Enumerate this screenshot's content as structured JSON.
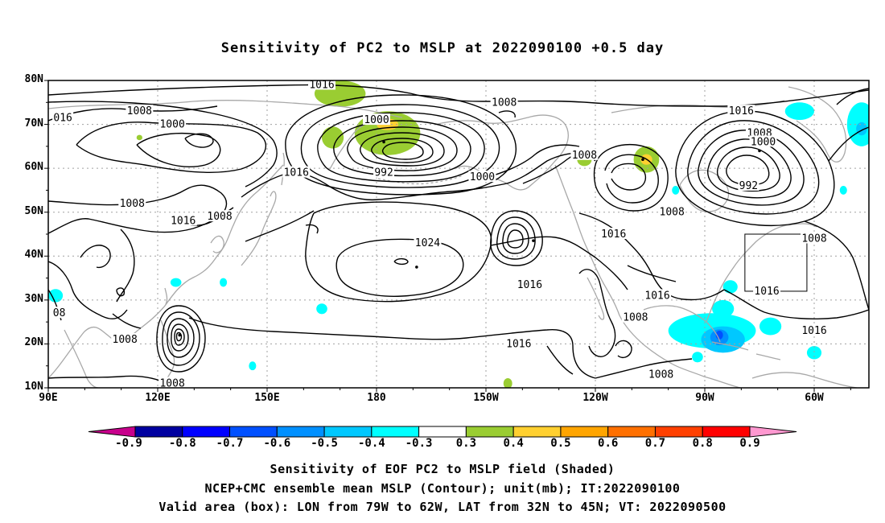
{
  "title": "Sensitivity of PC2 to MSLP at 2022090100 +0.5 day",
  "map": {
    "lat_labels": [
      "80N",
      "70N",
      "60N",
      "50N",
      "40N",
      "30N",
      "20N",
      "10N"
    ],
    "lon_labels": [
      "90E",
      "120E",
      "150E",
      "180",
      "150W",
      "120W",
      "90W",
      "60W"
    ],
    "lon_range_deg_east": [
      90,
      315
    ],
    "lat_range": [
      10,
      80
    ],
    "grid_style": "dotted",
    "valid_box": {
      "lon": [
        -79,
        -62
      ],
      "lat": [
        32,
        45
      ]
    },
    "contour_unit": "mb",
    "contour_labels": [
      {
        "text": "1016",
        "lon": 165,
        "lat": 79
      },
      {
        "text": "016",
        "lon": 94,
        "lat": 71.5
      },
      {
        "text": "1008",
        "lon": 115,
        "lat": 73
      },
      {
        "text": "1000",
        "lon": 124,
        "lat": 70
      },
      {
        "text": "1000",
        "lon": 180,
        "lat": 71
      },
      {
        "text": "1008",
        "lon": 215,
        "lat": 75
      },
      {
        "text": "1016",
        "lon": 280,
        "lat": 73
      },
      {
        "text": "1008",
        "lon": 285,
        "lat": 68
      },
      {
        "text": "1000",
        "lon": 286,
        "lat": 66
      },
      {
        "text": "992",
        "lon": 182,
        "lat": 59
      },
      {
        "text": "1000",
        "lon": 209,
        "lat": 58
      },
      {
        "text": "1016",
        "lon": 158,
        "lat": 59
      },
      {
        "text": "1008",
        "lon": 237,
        "lat": 63
      },
      {
        "text": "992",
        "lon": 282,
        "lat": 56
      },
      {
        "text": "1008",
        "lon": 261,
        "lat": 50
      },
      {
        "text": "1008",
        "lon": 113,
        "lat": 52
      },
      {
        "text": "1016",
        "lon": 127,
        "lat": 48
      },
      {
        "text": "1008",
        "lon": 137,
        "lat": 49
      },
      {
        "text": "1024",
        "lon": 194,
        "lat": 43
      },
      {
        "text": "1016",
        "lon": 222,
        "lat": 33.5
      },
      {
        "text": "1016",
        "lon": 245,
        "lat": 45
      },
      {
        "text": "1008",
        "lon": 300,
        "lat": 44
      },
      {
        "text": "1016",
        "lon": 257,
        "lat": 31
      },
      {
        "text": "1016",
        "lon": 287,
        "lat": 32
      },
      {
        "text": "08",
        "lon": 93,
        "lat": 27
      },
      {
        "text": "1008",
        "lon": 111,
        "lat": 21
      },
      {
        "text": "1008",
        "lon": 251,
        "lat": 26
      },
      {
        "text": "1016",
        "lon": 300,
        "lat": 23
      },
      {
        "text": "1016",
        "lon": 219,
        "lat": 20
      },
      {
        "text": "1008",
        "lon": 258,
        "lat": 13
      },
      {
        "text": "1008",
        "lon": 124,
        "lat": 11
      }
    ],
    "lows": [
      {
        "lon": 126,
        "lat": 22
      },
      {
        "lon": 223,
        "lat": 43.5
      },
      {
        "lon": 191,
        "lat": 37.5
      },
      {
        "lon": 253,
        "lat": 62
      },
      {
        "lon": 285,
        "lat": 64
      },
      {
        "lon": 182,
        "lat": 66
      }
    ],
    "positive_regions": [
      {
        "lon": 170,
        "lat": 77,
        "rlon": 7,
        "rlat": 3,
        "level": 0.3
      },
      {
        "lon": 183,
        "lat": 68,
        "rlon": 9,
        "rlat": 5,
        "level": 0.3
      },
      {
        "lon": 168,
        "lat": 67,
        "rlon": 3,
        "rlat": 2.5,
        "level": 0.3
      },
      {
        "lon": 183,
        "lat": 70,
        "rlon": 3,
        "rlat": 1.3,
        "level": 0.4
      },
      {
        "lon": 254,
        "lat": 62,
        "rlon": 3.5,
        "rlat": 3,
        "level": 0.3
      },
      {
        "lon": 254,
        "lat": 62,
        "rlon": 1.6,
        "rlat": 1.2,
        "level": 0.4
      },
      {
        "lon": 237,
        "lat": 62,
        "rlon": 2,
        "rlat": 1.5,
        "level": 0.3
      },
      {
        "lon": 216,
        "lat": 11,
        "rlon": 1.2,
        "rlat": 1.2,
        "level": 0.3
      },
      {
        "lon": 115,
        "lat": 67,
        "rlon": 0.8,
        "rlat": 0.6,
        "level": 0.3
      }
    ],
    "negative_regions": [
      {
        "lon": 296,
        "lat": 73,
        "rlon": 4,
        "rlat": 2,
        "level": -0.3
      },
      {
        "lon": 313,
        "lat": 70,
        "rlon": 4,
        "rlat": 5,
        "level": -0.3
      },
      {
        "lon": 313,
        "lat": 69,
        "rlon": 1.5,
        "rlat": 1.5,
        "level": -0.4
      },
      {
        "lon": 272,
        "lat": 23,
        "rlon": 12,
        "rlat": 4,
        "level": -0.3
      },
      {
        "lon": 275,
        "lat": 21,
        "rlon": 6,
        "rlat": 3,
        "level": -0.4
      },
      {
        "lon": 274,
        "lat": 21.5,
        "rlon": 2.5,
        "rlat": 1.8,
        "level": -0.5
      },
      {
        "lon": 274,
        "lat": 22,
        "rlon": 1,
        "rlat": 1,
        "level": -0.6
      },
      {
        "lon": 275,
        "lat": 28,
        "rlon": 3,
        "rlat": 2,
        "level": -0.3
      },
      {
        "lon": 288,
        "lat": 24,
        "rlon": 3,
        "rlat": 2,
        "level": -0.3
      },
      {
        "lon": 300,
        "lat": 18,
        "rlon": 2,
        "rlat": 1.5,
        "level": -0.3
      },
      {
        "lon": 268,
        "lat": 17,
        "rlon": 1.5,
        "rlat": 1.2,
        "level": -0.3
      },
      {
        "lon": 277,
        "lat": 33,
        "rlon": 2,
        "rlat": 1.5,
        "level": -0.3
      },
      {
        "lon": 165,
        "lat": 28,
        "rlon": 1.5,
        "rlat": 1.2,
        "level": -0.3
      },
      {
        "lon": 125,
        "lat": 34,
        "rlon": 1.5,
        "rlat": 1,
        "level": -0.3
      },
      {
        "lon": 92,
        "lat": 31,
        "rlon": 2,
        "rlat": 1.5,
        "level": -0.3
      },
      {
        "lon": 262,
        "lat": 55,
        "rlon": 1,
        "rlat": 1,
        "level": -0.3
      },
      {
        "lon": 308,
        "lat": 55,
        "rlon": 1,
        "rlat": 1,
        "level": -0.3
      },
      {
        "lon": 146,
        "lat": 15,
        "rlon": 1,
        "rlat": 1,
        "level": -0.3
      },
      {
        "lon": 138,
        "lat": 34,
        "rlon": 1,
        "rlat": 1,
        "level": -0.3
      }
    ]
  },
  "colorbar": {
    "labels": [
      "-0.9",
      "-0.8",
      "-0.7",
      "-0.6",
      "-0.5",
      "-0.4",
      "-0.3",
      "0.3",
      "0.4",
      "0.5",
      "0.6",
      "0.7",
      "0.8",
      "0.9"
    ],
    "colors": [
      "#0000a0",
      "#0000ff",
      "#0050ff",
      "#0090ff",
      "#00c8ff",
      "#00ffff",
      "#ffffff",
      "#9acd32",
      "#ffd030",
      "#ffa500",
      "#ff7000",
      "#ff4000",
      "#ff0000"
    ],
    "low_extend_color": "#c8008c",
    "high_extend_color": "#ff98d0"
  },
  "caption": {
    "line1": "Sensitivity of EOF PC2 to MSLP field (Shaded)",
    "line2": "NCEP+CMC ensemble mean MSLP (Contour); unit(mb); IT:2022090100",
    "line3": "Valid area (box): LON from 79W to 62W, LAT from 32N to 45N; VT: 2022090500"
  }
}
